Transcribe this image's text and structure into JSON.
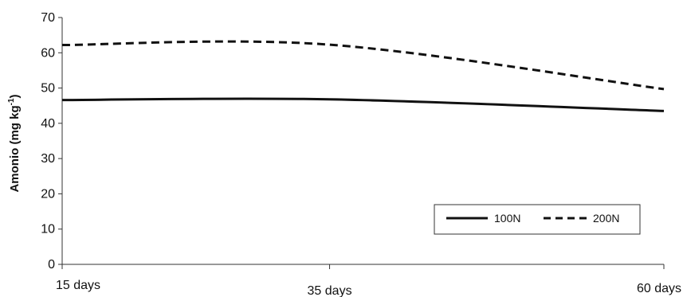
{
  "chart_data": {
    "type": "line",
    "title": "",
    "xlabel": "",
    "ylabel": "Amonio (mg kg",
    "ylabel_superscript": "-1",
    "ylabel_close": ")",
    "categories": [
      "15 days",
      "35 days",
      "60 days"
    ],
    "x": [
      15,
      35,
      60
    ],
    "ylim": [
      0,
      70
    ],
    "yticks": [
      "0",
      "10",
      "20",
      "30",
      "40",
      "50",
      "60",
      "70"
    ],
    "grid": false,
    "legend_position": "bottom-right",
    "series": [
      {
        "name": "100N",
        "style": "solid",
        "color": "#111111",
        "values": [
          46.6,
          46.8,
          43.5
        ]
      },
      {
        "name": "200N",
        "style": "dashed",
        "color": "#111111",
        "values": [
          62.2,
          62.3,
          49.7
        ]
      }
    ]
  }
}
